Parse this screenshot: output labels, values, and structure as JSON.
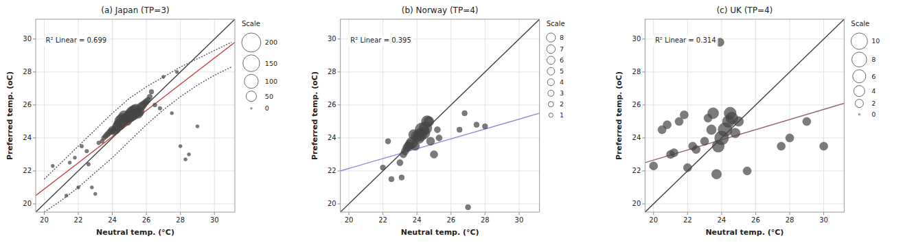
{
  "chart_data": [
    {
      "type": "scatter",
      "title": "(a) Japan (TP=3)",
      "annotation": "R² Linear = 0.699",
      "xlabel": "Neutral temp. (°C)",
      "ylabel": "Preferred temp. (oC)",
      "xlim": [
        19.5,
        31.2
      ],
      "ylim": [
        19.5,
        31.2
      ],
      "xticks": [
        20,
        22,
        24,
        26,
        28,
        30
      ],
      "yticks": [
        20,
        22,
        24,
        26,
        28,
        30
      ],
      "grid": true,
      "series": [
        {
          "type": "line",
          "color": "#404040",
          "x": [
            19.5,
            31.2
          ],
          "values": [
            19.5,
            31.2
          ]
        },
        {
          "type": "line",
          "color": "#cc4444",
          "x": [
            19.5,
            31.2
          ],
          "values": [
            20.5,
            29.8
          ]
        },
        {
          "type": "line",
          "line_style": "dotted",
          "color": "#555555",
          "x": [
            20.0,
            22.0,
            24.0,
            25.0,
            26.0,
            27.0,
            28.0,
            29.0,
            30.0,
            31.0
          ],
          "values": [
            21.5,
            23.5,
            25.5,
            26.4,
            27.1,
            27.7,
            28.3,
            28.8,
            29.3,
            29.8
          ]
        },
        {
          "type": "line",
          "line_style": "dotted",
          "color": "#555555",
          "x": [
            20.0,
            21.0,
            22.0,
            23.0,
            24.0,
            25.0,
            26.0,
            27.0,
            28.0,
            29.0,
            30.0,
            31.0
          ],
          "values": [
            19.5,
            20.2,
            21.0,
            21.9,
            22.8,
            23.8,
            24.8,
            25.7,
            26.5,
            27.2,
            27.8,
            28.3
          ]
        },
        {
          "type": "scatter",
          "color": "#444444",
          "x": [
            20.5,
            21.3,
            21.5,
            21.8,
            22.0,
            22.2,
            22.5,
            22.6,
            22.8,
            23.0,
            23.2,
            23.4,
            23.5,
            23.6,
            23.7,
            23.8,
            23.9,
            24.0,
            24.1,
            24.2,
            24.3,
            24.4,
            24.5,
            24.6,
            24.7,
            24.8,
            24.9,
            25.0,
            25.1,
            25.2,
            25.3,
            25.4,
            25.5,
            25.6,
            25.7,
            25.8,
            25.9,
            26.0,
            26.1,
            26.2,
            26.3,
            26.5,
            26.8,
            27.0,
            27.5,
            27.8,
            28.0,
            28.3,
            28.5,
            29.0
          ],
          "values": [
            22.3,
            20.5,
            22.5,
            22.8,
            21.0,
            23.5,
            23.2,
            22.4,
            21.0,
            20.6,
            23.7,
            23.8,
            24.0,
            24.1,
            24.2,
            24.3,
            24.4,
            24.5,
            24.4,
            24.5,
            24.7,
            24.8,
            25.0,
            25.1,
            25.3,
            25.2,
            25.0,
            25.3,
            25.4,
            25.5,
            25.6,
            25.7,
            25.5,
            25.6,
            25.9,
            26.0,
            26.1,
            26.2,
            26.3,
            26.5,
            26.8,
            26.0,
            25.8,
            27.7,
            25.5,
            28.0,
            23.5,
            22.7,
            23.0,
            24.7
          ],
          "sizes": [
            2,
            2,
            2,
            2,
            2,
            3,
            3,
            3,
            2,
            2,
            3,
            4,
            6,
            8,
            10,
            12,
            15,
            20,
            22,
            35,
            45,
            60,
            80,
            80,
            65,
            45,
            25,
            65,
            80,
            100,
            85,
            65,
            50,
            40,
            30,
            22,
            16,
            14,
            10,
            8,
            6,
            4,
            3,
            2,
            2,
            2,
            2,
            2,
            2,
            2
          ]
        }
      ],
      "size_legend": {
        "title": "Scale",
        "values": [
          200,
          150,
          100,
          50,
          0
        ]
      }
    },
    {
      "type": "scatter",
      "title": "(b) Norway (TP=4)",
      "annotation": "R² Linear = 0.395",
      "xlabel": "Neutral temp. (°C)",
      "ylabel": "Preferred temp. (oC)",
      "xlim": [
        19.5,
        31.2
      ],
      "ylim": [
        19.5,
        31.2
      ],
      "xticks": [
        20,
        22,
        24,
        26,
        28,
        30
      ],
      "yticks": [
        20,
        22,
        24,
        26,
        28,
        30
      ],
      "grid": true,
      "series": [
        {
          "type": "line",
          "color": "#404040",
          "x": [
            19.5,
            31.2
          ],
          "values": [
            19.5,
            31.2
          ]
        },
        {
          "type": "line",
          "color": "#8888dd",
          "x": [
            19.5,
            31.2
          ],
          "values": [
            22.0,
            25.5
          ]
        },
        {
          "type": "scatter",
          "color": "#444444",
          "x": [
            22.0,
            22.3,
            22.5,
            23.0,
            23.1,
            23.2,
            23.3,
            23.4,
            23.5,
            23.6,
            23.7,
            23.8,
            23.9,
            24.0,
            24.1,
            24.2,
            24.3,
            24.4,
            24.5,
            24.6,
            24.7,
            24.8,
            25.0,
            25.2,
            25.3,
            26.5,
            26.8,
            27.0,
            27.5,
            28.0
          ],
          "values": [
            22.2,
            23.8,
            21.5,
            22.5,
            21.6,
            23.0,
            23.2,
            23.4,
            23.5,
            23.6,
            23.7,
            24.2,
            23.5,
            24.1,
            24.0,
            24.2,
            24.5,
            24.3,
            24.6,
            25.0,
            25.0,
            23.8,
            23.0,
            24.5,
            24.0,
            24.5,
            25.5,
            19.8,
            24.8,
            24.7
          ],
          "sizes": [
            2,
            2,
            2,
            3,
            2,
            4,
            5,
            6,
            8,
            10,
            14,
            10,
            7,
            14,
            14,
            18,
            22,
            16,
            18,
            14,
            10,
            6,
            5,
            3,
            3,
            2,
            2,
            2,
            2,
            2
          ]
        }
      ],
      "size_legend": {
        "title": "Scale",
        "values": [
          8,
          7,
          6,
          5,
          4,
          3,
          2,
          1
        ]
      }
    },
    {
      "type": "scatter",
      "title": "(c) UK (TP=4)",
      "annotation": "R² Linear = 0.314",
      "xlabel": "Neutral temp. (°C)",
      "ylabel": "Preferred temp. (oC)",
      "xlim": [
        19.5,
        31.2
      ],
      "ylim": [
        19.5,
        31.2
      ],
      "xticks": [
        20,
        22,
        24,
        26,
        28,
        30
      ],
      "yticks": [
        20,
        22,
        24,
        26,
        28,
        30
      ],
      "grid": true,
      "series": [
        {
          "type": "line",
          "color": "#404040",
          "x": [
            19.5,
            31.2
          ],
          "values": [
            19.5,
            31.2
          ]
        },
        {
          "type": "line",
          "color": "#996666",
          "x": [
            19.5,
            31.2
          ],
          "values": [
            22.5,
            26.1
          ]
        },
        {
          "type": "scatter",
          "color": "#444444",
          "x": [
            20.0,
            20.5,
            20.8,
            21.0,
            21.2,
            21.5,
            21.8,
            22.0,
            22.3,
            22.5,
            23.0,
            23.2,
            23.4,
            23.5,
            23.7,
            23.8,
            23.9,
            24.0,
            24.2,
            24.4,
            24.5,
            24.6,
            24.8,
            25.0,
            25.5,
            27.5,
            28.0,
            29.0,
            30.0
          ],
          "values": [
            22.3,
            24.5,
            24.8,
            23.0,
            23.1,
            25.0,
            25.4,
            22.2,
            23.5,
            23.3,
            23.8,
            25.2,
            24.5,
            25.5,
            21.8,
            23.5,
            29.8,
            24.0,
            24.5,
            25.0,
            25.5,
            25.2,
            24.3,
            25.0,
            22.0,
            23.5,
            24.0,
            25.0,
            23.5
          ],
          "sizes": [
            2,
            2,
            2,
            2,
            2,
            2,
            2,
            2,
            2,
            2,
            2,
            2,
            3,
            4,
            3,
            5,
            2,
            7,
            7,
            5,
            5,
            5,
            3,
            3,
            2,
            2,
            2,
            2,
            2
          ]
        }
      ],
      "size_legend": {
        "title": "Scale",
        "values": [
          10,
          8,
          6,
          4,
          2,
          0
        ]
      }
    }
  ]
}
